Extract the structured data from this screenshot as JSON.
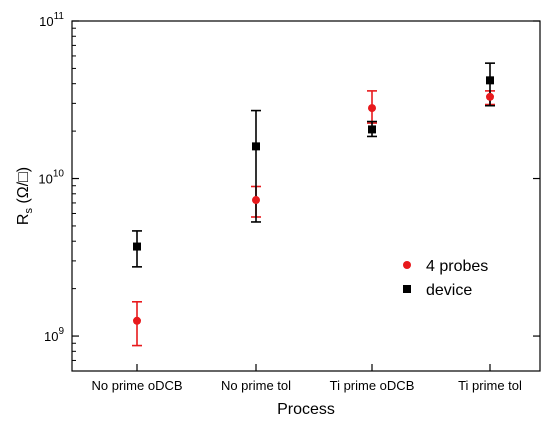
{
  "chart_data": {
    "type": "scatter",
    "title": "",
    "xlabel": "Process",
    "ylabel_main": "R",
    "ylabel_sub": "s",
    "ylabel_unit": " (Ω/□)",
    "yscale": "log",
    "ylim": [
      600000000,
      100000000000
    ],
    "categories": [
      "No prime oDCB",
      "No prime tol",
      "Ti prime oDCB",
      "Ti prime tol"
    ],
    "y_ticks": [
      {
        "value": 1000000000,
        "mantissa": "10",
        "exp": "9"
      },
      {
        "value": 10000000000,
        "mantissa": "10",
        "exp": "10"
      },
      {
        "value": 100000000000,
        "mantissa": "10",
        "exp": "11"
      }
    ],
    "series": [
      {
        "name": "4 probes",
        "color": "#e8191c",
        "marker": "circle",
        "values": [
          1250000000,
          7300000000,
          28000000000,
          33000000000
        ],
        "err_low": [
          870000000,
          5700000000,
          22500000000,
          29500000000
        ],
        "err_high": [
          1650000000,
          8900000000,
          36000000000,
          36000000000
        ]
      },
      {
        "name": "device",
        "color": "#000000",
        "marker": "square",
        "values": [
          3700000000,
          16000000000,
          20500000000,
          42000000000
        ],
        "err_low": [
          2750000000,
          5300000000,
          18500000000,
          29000000000
        ],
        "err_high": [
          4650000000,
          27000000000,
          23000000000,
          54000000000
        ]
      }
    ],
    "legend_position": "center-right",
    "grid": false
  }
}
